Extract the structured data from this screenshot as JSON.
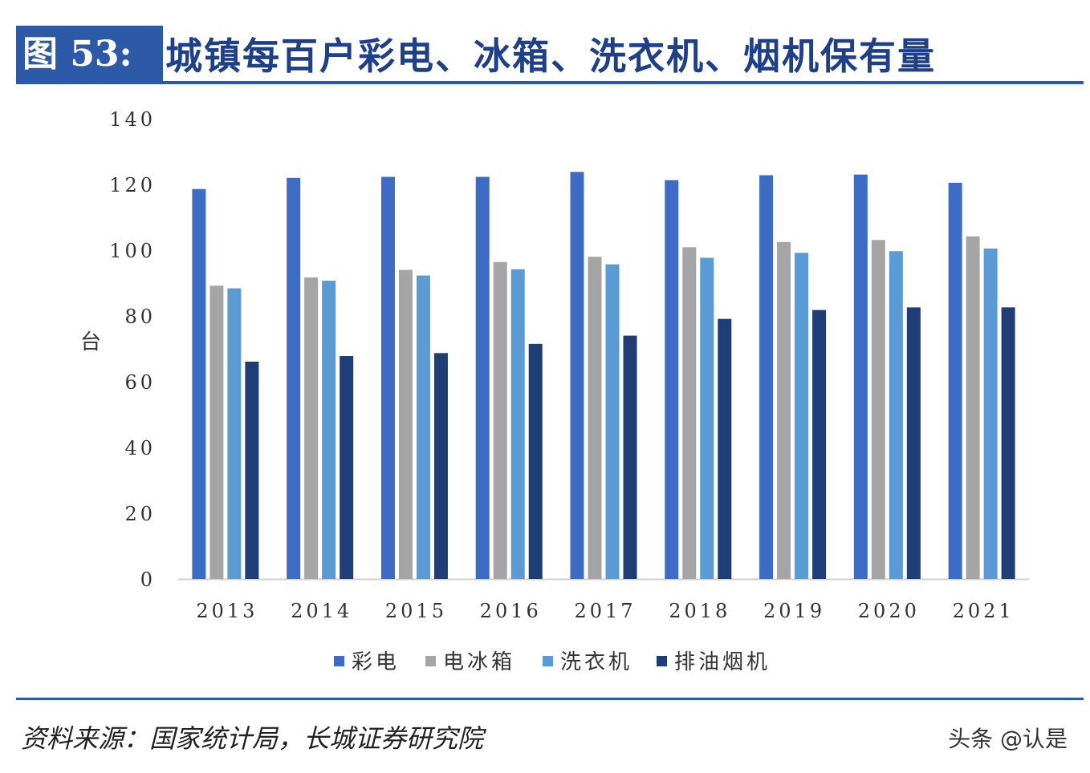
{
  "header": {
    "figure_label": "图 53:",
    "title": "城镇每百户彩电、冰箱、洗衣机、烟机保有量"
  },
  "footer": {
    "source": "资料来源：国家统计局，长城证券研究院",
    "watermark": "头条 @认是"
  },
  "chart_data": {
    "type": "bar",
    "title": "城镇每百户彩电、冰箱、洗衣机、烟机保有量",
    "xlabel": "",
    "ylabel": "台",
    "ylim": [
      0,
      140
    ],
    "yticks": [
      "0",
      "20",
      "40",
      "60",
      "80",
      "100",
      "120",
      "140"
    ],
    "grid": false,
    "legend_position": "bottom",
    "categories": [
      "2013",
      "2014",
      "2015",
      "2016",
      "2017",
      "2018",
      "2019",
      "2020",
      "2021"
    ],
    "series": [
      {
        "name": "彩电",
        "color": "#3d6cc6",
        "values": [
          118.6,
          122.0,
          122.3,
          122.3,
          123.8,
          121.3,
          122.8,
          123.0,
          120.5
        ]
      },
      {
        "name": "电冰箱",
        "color": "#a5a5a5",
        "values": [
          89.2,
          91.7,
          94.0,
          96.4,
          98.0,
          100.9,
          102.5,
          103.1,
          104.2
        ]
      },
      {
        "name": "洗衣机",
        "color": "#5b9bd5",
        "values": [
          88.4,
          90.7,
          92.3,
          94.2,
          95.7,
          97.7,
          99.2,
          99.7,
          100.5
        ]
      },
      {
        "name": "排油烟机",
        "color": "#1f3d77",
        "values": [
          66.1,
          67.8,
          68.7,
          71.5,
          74.0,
          79.1,
          81.8,
          82.6,
          82.6
        ]
      }
    ]
  }
}
